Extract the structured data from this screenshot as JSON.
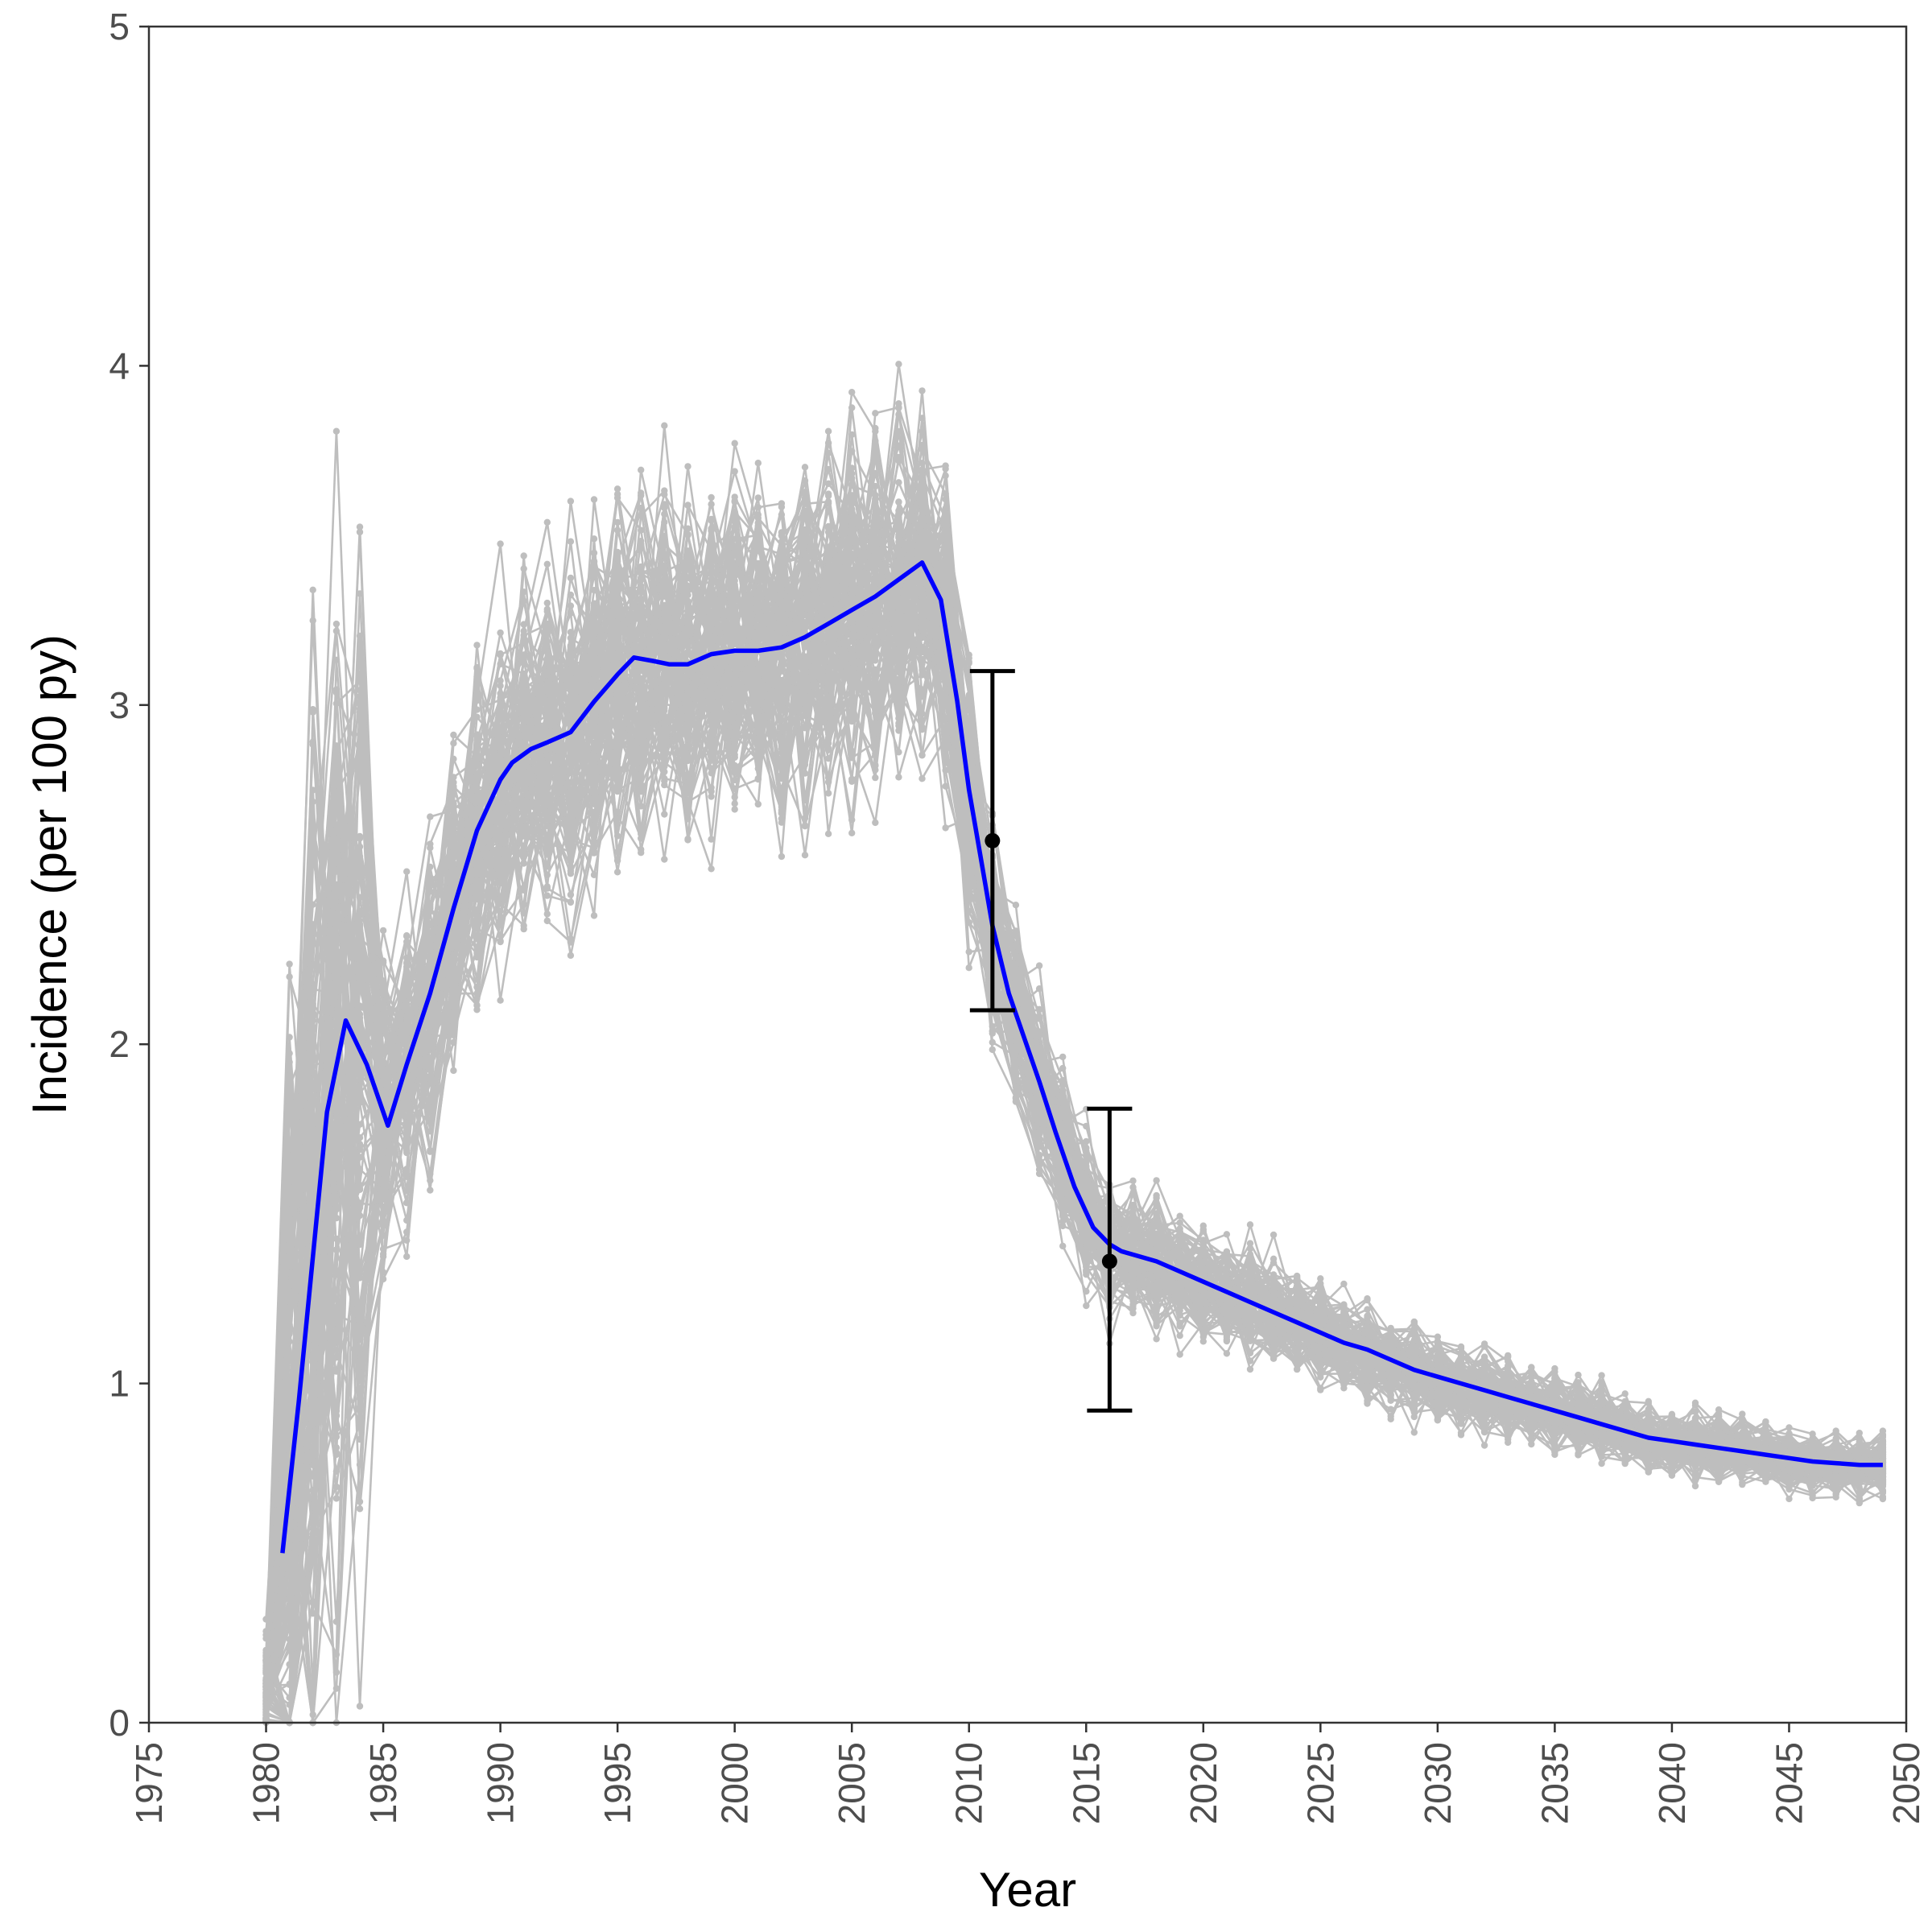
{
  "chart_data": {
    "type": "line",
    "title": "",
    "xlabel": "Year",
    "ylabel": "Incidence (per 100 py)",
    "xlim": [
      1975,
      2050
    ],
    "ylim": [
      0,
      5
    ],
    "x_ticks": [
      1975,
      1980,
      1985,
      1990,
      1995,
      2000,
      2005,
      2010,
      2015,
      2020,
      2025,
      2030,
      2035,
      2040,
      2045,
      2050
    ],
    "y_ticks": [
      0,
      1,
      2,
      3,
      4,
      5
    ],
    "grid": false,
    "legend": "none",
    "colors": {
      "simulations": "#bebebe",
      "mean": "#0000ff",
      "observed": "#000000",
      "axis": "#333333"
    },
    "mean_series": {
      "x": [
        1980.7,
        1981.4,
        1982.6,
        1983.4,
        1984.3,
        1985.2,
        1986,
        1987,
        1988,
        1989,
        1990,
        1990.5,
        1991.3,
        1992,
        1993,
        1994,
        1995,
        1995.7,
        1996.5,
        1997.2,
        1998,
        1999,
        2000,
        2001,
        2002,
        2003,
        2004,
        2005,
        2006,
        2007,
        2008,
        2008.8,
        2009.5,
        2010,
        2010.5,
        2011,
        2011.7,
        2012.3,
        2013,
        2013.7,
        2014.5,
        2015.3,
        2016,
        2016.5,
        2017,
        2018,
        2019,
        2020,
        2021,
        2022,
        2023,
        2024,
        2025,
        2026,
        2027,
        2028,
        2029,
        2030,
        2031,
        2032,
        2033,
        2034,
        2035,
        2036,
        2037,
        2038,
        2039,
        2040,
        2041,
        2042,
        2043,
        2044,
        2045,
        2046,
        2047,
        2048,
        2049
      ],
      "y": [
        0.5,
        0.95,
        1.8,
        2.07,
        1.94,
        1.76,
        1.94,
        2.15,
        2.4,
        2.63,
        2.78,
        2.83,
        2.87,
        2.89,
        2.92,
        3.01,
        3.09,
        3.14,
        3.13,
        3.12,
        3.12,
        3.15,
        3.16,
        3.16,
        3.17,
        3.2,
        3.24,
        3.28,
        3.32,
        3.37,
        3.42,
        3.31,
        3.01,
        2.75,
        2.55,
        2.35,
        2.15,
        2.03,
        1.89,
        1.74,
        1.58,
        1.46,
        1.41,
        1.39,
        1.38,
        1.36,
        1.33,
        1.3,
        1.27,
        1.24,
        1.21,
        1.18,
        1.15,
        1.12,
        1.1,
        1.07,
        1.04,
        1.02,
        1.0,
        0.98,
        0.96,
        0.94,
        0.92,
        0.9,
        0.88,
        0.86,
        0.84,
        0.83,
        0.82,
        0.81,
        0.8,
        0.79,
        0.78,
        0.77,
        0.765,
        0.76,
        0.76
      ]
    },
    "observed": [
      {
        "x": 2011,
        "y": 2.6,
        "lower": 2.1,
        "upper": 3.1
      },
      {
        "x": 2016,
        "y": 1.36,
        "lower": 0.92,
        "upper": 1.81
      }
    ],
    "simulation_envelope": {
      "count": 120,
      "x": [
        1980,
        1981,
        1982,
        1983,
        1984,
        1985,
        1986,
        1987,
        1988,
        1989,
        1990,
        1991,
        1992,
        1993,
        1994,
        1995,
        1996,
        1997,
        1998,
        1999,
        2000,
        2001,
        2002,
        2003,
        2004,
        2005,
        2006,
        2007,
        2008,
        2009,
        2010,
        2011,
        2012,
        2013,
        2014,
        2015,
        2016,
        2017,
        2018,
        2019,
        2020,
        2021,
        2022,
        2023,
        2024,
        2025,
        2026,
        2027,
        2028,
        2029,
        2030,
        2031,
        2032,
        2033,
        2034,
        2035,
        2036,
        2037,
        2038,
        2039,
        2040,
        2041,
        2042,
        2043,
        2044,
        2045,
        2046,
        2047,
        2048,
        2049
      ],
      "spread": [
        0.15,
        1.5,
        1.5,
        1.6,
        1.5,
        0.45,
        0.42,
        0.42,
        0.44,
        0.46,
        0.48,
        0.48,
        0.48,
        0.48,
        0.48,
        0.48,
        0.48,
        0.48,
        0.48,
        0.48,
        0.48,
        0.48,
        0.48,
        0.48,
        0.48,
        0.48,
        0.48,
        0.48,
        0.48,
        0.45,
        0.38,
        0.3,
        0.26,
        0.24,
        0.22,
        0.2,
        0.18,
        0.17,
        0.17,
        0.16,
        0.16,
        0.15,
        0.15,
        0.14,
        0.14,
        0.13,
        0.13,
        0.13,
        0.12,
        0.12,
        0.12,
        0.11,
        0.11,
        0.11,
        0.1,
        0.1,
        0.1,
        0.1,
        0.09,
        0.09,
        0.09,
        0.09,
        0.09,
        0.08,
        0.08,
        0.08,
        0.08,
        0.08,
        0.08,
        0.08
      ]
    }
  }
}
